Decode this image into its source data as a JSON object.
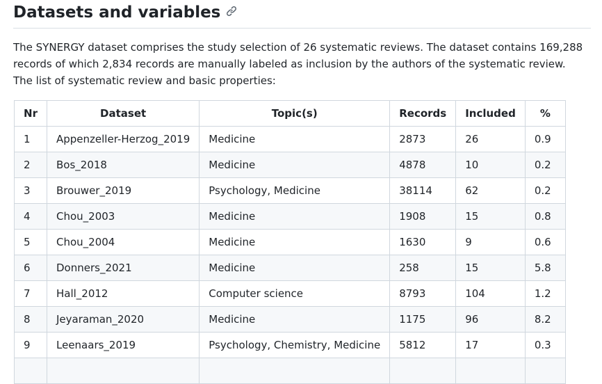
{
  "heading": "Datasets and variables",
  "intro": "The SYNERGY dataset comprises the study selection of 26 systematic reviews. The dataset contains 169,288 records of which 2,834 records are manually labeled as inclusion by the authors of the systematic review. The list of systematic review and basic properties:",
  "table": {
    "headers": {
      "nr": "Nr",
      "dataset": "Dataset",
      "topics": "Topic(s)",
      "records": "Records",
      "included": "Included",
      "percent": "%"
    },
    "rows": [
      {
        "nr": "1",
        "dataset": "Appenzeller-Herzog_2019",
        "topics": "Medicine",
        "records": "2873",
        "included": "26",
        "percent": "0.9"
      },
      {
        "nr": "2",
        "dataset": "Bos_2018",
        "topics": "Medicine",
        "records": "4878",
        "included": "10",
        "percent": "0.2"
      },
      {
        "nr": "3",
        "dataset": "Brouwer_2019",
        "topics": "Psychology, Medicine",
        "records": "38114",
        "included": "62",
        "percent": "0.2"
      },
      {
        "nr": "4",
        "dataset": "Chou_2003",
        "topics": "Medicine",
        "records": "1908",
        "included": "15",
        "percent": "0.8"
      },
      {
        "nr": "5",
        "dataset": "Chou_2004",
        "topics": "Medicine",
        "records": "1630",
        "included": "9",
        "percent": "0.6"
      },
      {
        "nr": "6",
        "dataset": "Donners_2021",
        "topics": "Medicine",
        "records": "258",
        "included": "15",
        "percent": "5.8"
      },
      {
        "nr": "7",
        "dataset": "Hall_2012",
        "topics": "Computer science",
        "records": "8793",
        "included": "104",
        "percent": "1.2"
      },
      {
        "nr": "8",
        "dataset": "Jeyaraman_2020",
        "topics": "Medicine",
        "records": "1175",
        "included": "96",
        "percent": "8.2"
      },
      {
        "nr": "9",
        "dataset": "Leenaars_2019",
        "topics": "Psychology, Chemistry, Medicine",
        "records": "5812",
        "included": "17",
        "percent": "0.3"
      },
      {
        "nr": "",
        "dataset": "",
        "topics": "",
        "records": "",
        "included": "",
        "percent": ""
      }
    ]
  }
}
